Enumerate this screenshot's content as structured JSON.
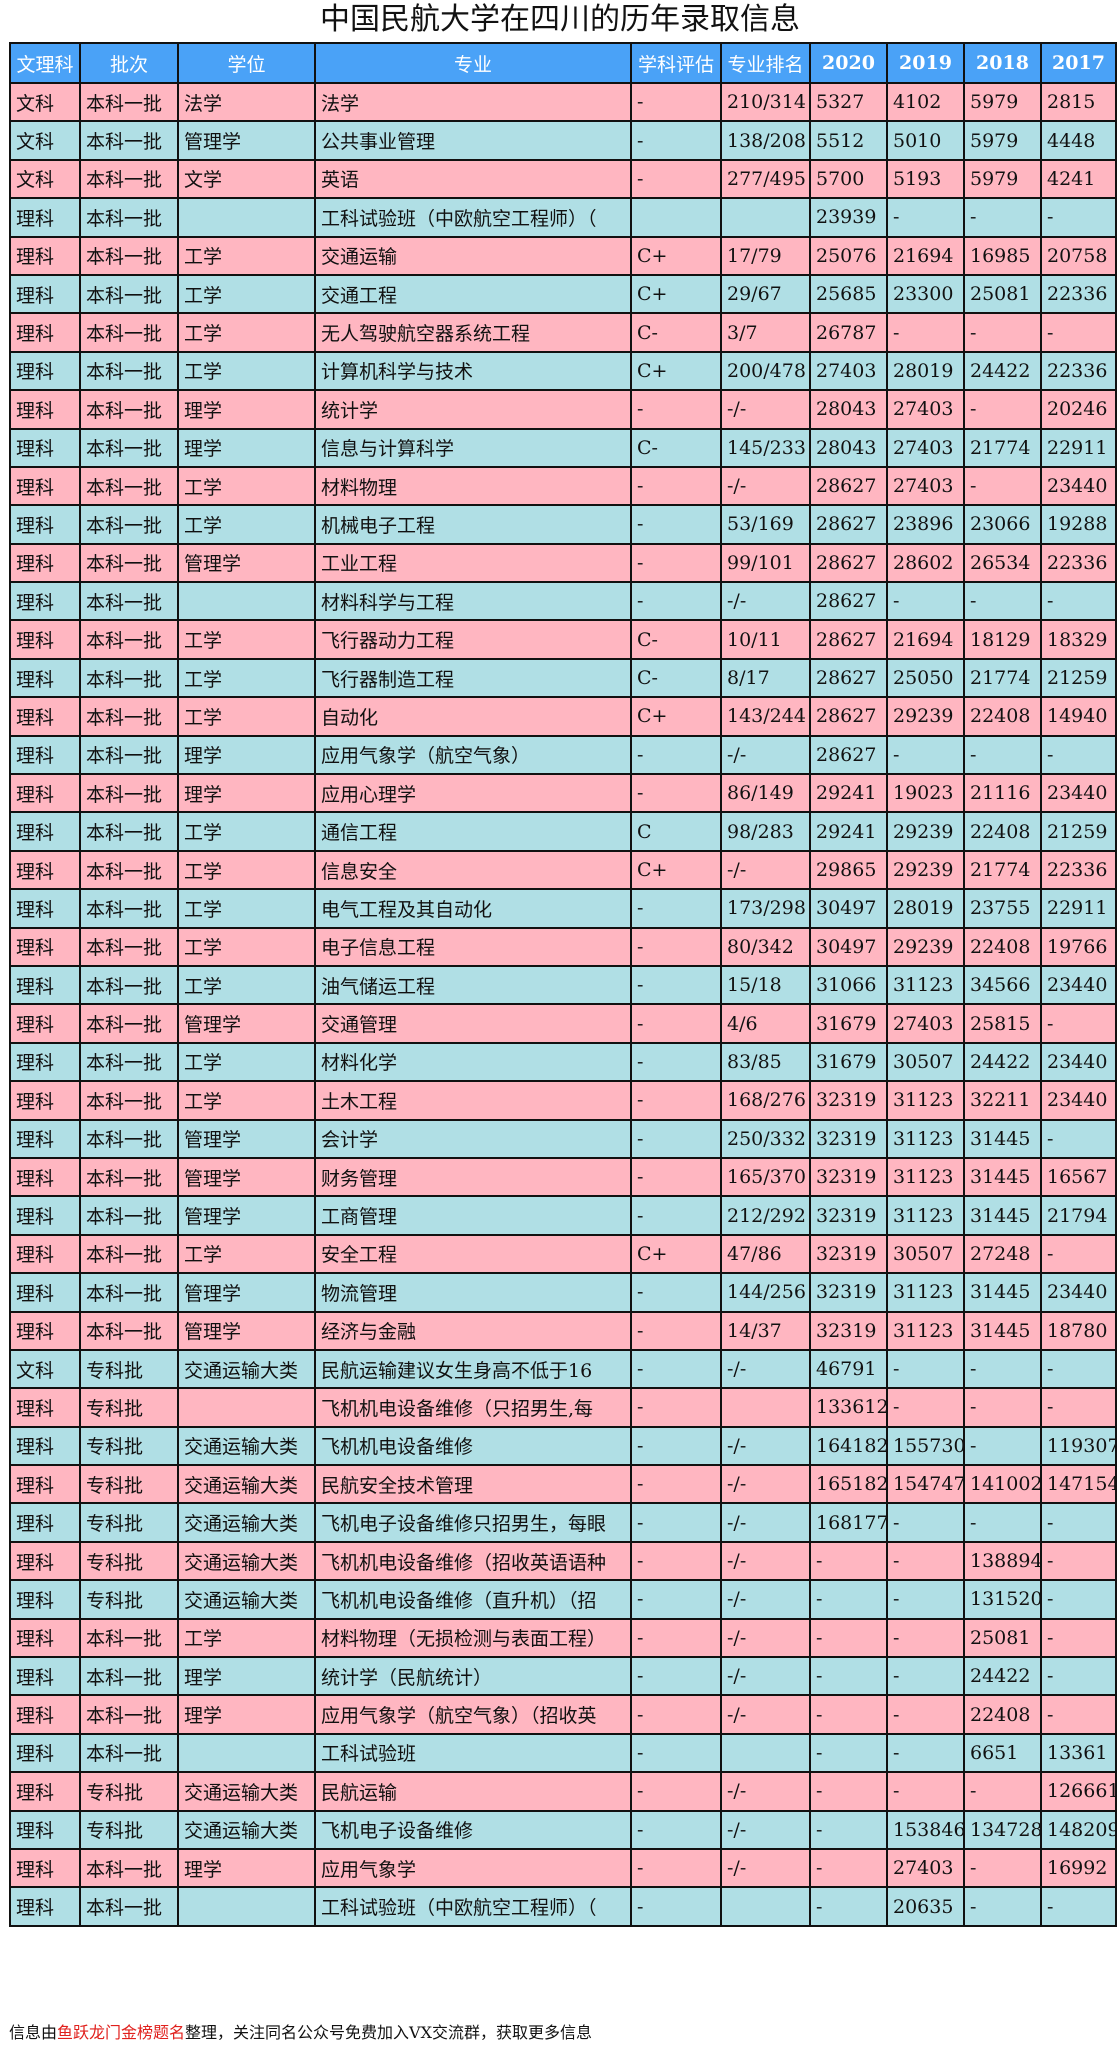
{
  "title": "中国民航大学在四川的历年录取信息",
  "colors": {
    "header": "#4aa2f7",
    "row_odd": "#ffb6c1",
    "row_even": "#b0dfe5",
    "highlight": "#e0201c"
  },
  "table": {
    "headers": [
      "文理科",
      "批次",
      "学位",
      "专业",
      "学科评估",
      "专业排名",
      "2020",
      "2019",
      "2018",
      "2017"
    ],
    "rows": [
      [
        "文科",
        "本科一批",
        "法学",
        "法学",
        "-",
        "210/314",
        "5327",
        "4102",
        "5979",
        "2815"
      ],
      [
        "文科",
        "本科一批",
        "管理学",
        "公共事业管理",
        "-",
        "138/208",
        "5512",
        "5010",
        "5979",
        "4448"
      ],
      [
        "文科",
        "本科一批",
        "文学",
        "英语",
        "-",
        "277/495",
        "5700",
        "5193",
        "5979",
        "4241"
      ],
      [
        "理科",
        "本科一批",
        "",
        "工科试验班（中欧航空工程师）（",
        "",
        "",
        "23939",
        "-",
        "-",
        "-"
      ],
      [
        "理科",
        "本科一批",
        "工学",
        "交通运输",
        "C+",
        "17/79",
        "25076",
        "21694",
        "16985",
        "20758"
      ],
      [
        "理科",
        "本科一批",
        "工学",
        "交通工程",
        "C+",
        "29/67",
        "25685",
        "23300",
        "25081",
        "22336"
      ],
      [
        "理科",
        "本科一批",
        "工学",
        "无人驾驶航空器系统工程",
        "C-",
        "3/7",
        "26787",
        "-",
        "-",
        "-"
      ],
      [
        "理科",
        "本科一批",
        "工学",
        "计算机科学与技术",
        "C+",
        "200/478",
        "27403",
        "28019",
        "24422",
        "22336"
      ],
      [
        "理科",
        "本科一批",
        "理学",
        "统计学",
        "-",
        "-/-",
        "28043",
        "27403",
        "-",
        "20246"
      ],
      [
        "理科",
        "本科一批",
        "理学",
        "信息与计算科学",
        "C-",
        "145/233",
        "28043",
        "27403",
        "21774",
        "22911"
      ],
      [
        "理科",
        "本科一批",
        "工学",
        "材料物理",
        "-",
        "-/-",
        "28627",
        "27403",
        "-",
        "23440"
      ],
      [
        "理科",
        "本科一批",
        "工学",
        "机械电子工程",
        "-",
        "53/169",
        "28627",
        "23896",
        "23066",
        "19288"
      ],
      [
        "理科",
        "本科一批",
        "管理学",
        "工业工程",
        "-",
        "99/101",
        "28627",
        "28602",
        "26534",
        "22336"
      ],
      [
        "理科",
        "本科一批",
        "",
        "材料科学与工程",
        "-",
        "-/-",
        "28627",
        "-",
        "-",
        "-"
      ],
      [
        "理科",
        "本科一批",
        "工学",
        "飞行器动力工程",
        "C-",
        "10/11",
        "28627",
        "21694",
        "18129",
        "18329"
      ],
      [
        "理科",
        "本科一批",
        "工学",
        "飞行器制造工程",
        "C-",
        "8/17",
        "28627",
        "25050",
        "21774",
        "21259"
      ],
      [
        "理科",
        "本科一批",
        "工学",
        "自动化",
        "C+",
        "143/244",
        "28627",
        "29239",
        "22408",
        "14940"
      ],
      [
        "理科",
        "本科一批",
        "理学",
        "应用气象学（航空气象）",
        "-",
        "-/-",
        "28627",
        "-",
        "-",
        "-"
      ],
      [
        "理科",
        "本科一批",
        "理学",
        "应用心理学",
        "-",
        "86/149",
        "29241",
        "19023",
        "21116",
        "23440"
      ],
      [
        "理科",
        "本科一批",
        "工学",
        "通信工程",
        "C",
        "98/283",
        "29241",
        "29239",
        "22408",
        "21259"
      ],
      [
        "理科",
        "本科一批",
        "工学",
        "信息安全",
        "C+",
        "-/-",
        "29865",
        "29239",
        "21774",
        "22336"
      ],
      [
        "理科",
        "本科一批",
        "工学",
        "电气工程及其自动化",
        "-",
        "173/298",
        "30497",
        "28019",
        "23755",
        "22911"
      ],
      [
        "理科",
        "本科一批",
        "工学",
        "电子信息工程",
        "-",
        "80/342",
        "30497",
        "29239",
        "22408",
        "19766"
      ],
      [
        "理科",
        "本科一批",
        "工学",
        "油气储运工程",
        "-",
        "15/18",
        "31066",
        "31123",
        "34566",
        "23440"
      ],
      [
        "理科",
        "本科一批",
        "管理学",
        "交通管理",
        "-",
        "4/6",
        "31679",
        "27403",
        "25815",
        "-"
      ],
      [
        "理科",
        "本科一批",
        "工学",
        "材料化学",
        "-",
        "83/85",
        "31679",
        "30507",
        "24422",
        "23440"
      ],
      [
        "理科",
        "本科一批",
        "工学",
        "土木工程",
        "-",
        "168/276",
        "32319",
        "31123",
        "32211",
        "23440"
      ],
      [
        "理科",
        "本科一批",
        "管理学",
        "会计学",
        "-",
        "250/332",
        "32319",
        "31123",
        "31445",
        "-"
      ],
      [
        "理科",
        "本科一批",
        "管理学",
        "财务管理",
        "-",
        "165/370",
        "32319",
        "31123",
        "31445",
        "16567"
      ],
      [
        "理科",
        "本科一批",
        "管理学",
        "工商管理",
        "-",
        "212/292",
        "32319",
        "31123",
        "31445",
        "21794"
      ],
      [
        "理科",
        "本科一批",
        "工学",
        "安全工程",
        "C+",
        "47/86",
        "32319",
        "30507",
        "27248",
        "-"
      ],
      [
        "理科",
        "本科一批",
        "管理学",
        "物流管理",
        "-",
        "144/256",
        "32319",
        "31123",
        "31445",
        "23440"
      ],
      [
        "理科",
        "本科一批",
        "管理学",
        "经济与金融",
        "-",
        "14/37",
        "32319",
        "31123",
        "31445",
        "18780"
      ],
      [
        "文科",
        "专科批",
        "交通运输大类",
        "民航运输建议女生身高不低于16",
        "-",
        "-/-",
        "46791",
        "-",
        "-",
        "-"
      ],
      [
        "理科",
        "专科批",
        "",
        "飞机机电设备维修（只招男生,每",
        "-",
        "",
        "133612",
        "-",
        "-",
        "-"
      ],
      [
        "理科",
        "专科批",
        "交通运输大类",
        "飞机机电设备维修",
        "-",
        "-/-",
        "164182",
        "155730",
        "-",
        "119307"
      ],
      [
        "理科",
        "专科批",
        "交通运输大类",
        "民航安全技术管理",
        "-",
        "-/-",
        "165182",
        "154747",
        "141002",
        "147154"
      ],
      [
        "理科",
        "专科批",
        "交通运输大类",
        "飞机电子设备维修只招男生，每眼",
        "-",
        "-/-",
        "168177",
        "-",
        "-",
        "-"
      ],
      [
        "理科",
        "专科批",
        "交通运输大类",
        "飞机机电设备维修（招收英语语种",
        "-",
        "-/-",
        "-",
        "-",
        "138894",
        "-"
      ],
      [
        "理科",
        "专科批",
        "交通运输大类",
        "飞机机电设备维修（直升机）（招",
        "-",
        "-/-",
        "-",
        "-",
        "131520",
        "-"
      ],
      [
        "理科",
        "本科一批",
        "工学",
        "材料物理（无损检测与表面工程）",
        "-",
        "-/-",
        "-",
        "-",
        "25081",
        "-"
      ],
      [
        "理科",
        "本科一批",
        "理学",
        "统计学（民航统计）",
        "-",
        "-/-",
        "-",
        "-",
        "24422",
        "-"
      ],
      [
        "理科",
        "本科一批",
        "理学",
        "应用气象学（航空气象）（招收英",
        "-",
        "-/-",
        "-",
        "-",
        "22408",
        "-"
      ],
      [
        "理科",
        "本科一批",
        "",
        "工科试验班",
        "-",
        "",
        "-",
        "-",
        "6651",
        "13361"
      ],
      [
        "理科",
        "专科批",
        "交通运输大类",
        "民航运输",
        "-",
        "-/-",
        "-",
        "-",
        "-",
        "126661"
      ],
      [
        "理科",
        "专科批",
        "交通运输大类",
        "飞机电子设备维修",
        "-",
        "-/-",
        "-",
        "153846",
        "134728",
        "148209"
      ],
      [
        "理科",
        "本科一批",
        "理学",
        "应用气象学",
        "-",
        "-/-",
        "-",
        "27403",
        "-",
        "16992"
      ],
      [
        "理科",
        "本科一批",
        "",
        "工科试验班（中欧航空工程师）（",
        "-",
        "",
        "-",
        "20635",
        "-",
        "-"
      ]
    ]
  },
  "footer": {
    "prefix": "信息由",
    "highlight": "鱼跃龙门金榜题名",
    "suffix": "整理，关注同名公众号免费加入VX交流群，获取更多信息"
  }
}
